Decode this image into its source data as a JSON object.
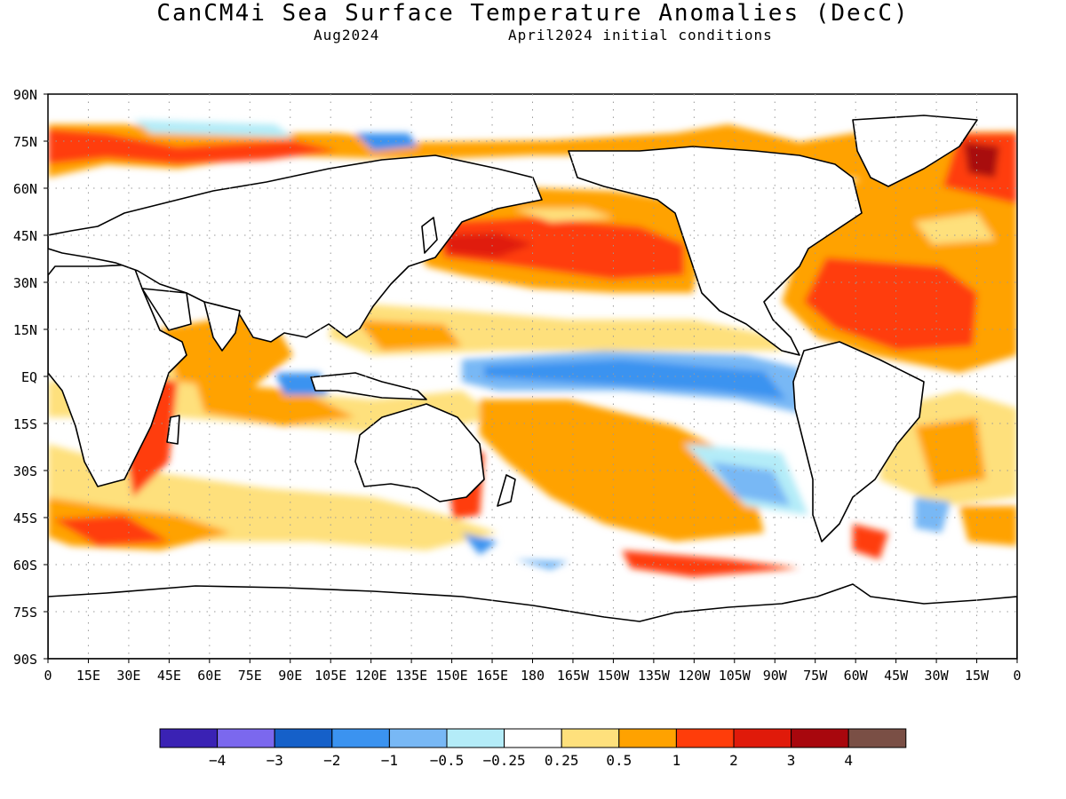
{
  "header": {
    "title": "CanCM4i Sea Surface Temperature Anomalies (DecC)",
    "month": "Aug2024",
    "init": "April2024 initial conditions"
  },
  "axes": {
    "lat_labels": [
      "90N",
      "75N",
      "60N",
      "45N",
      "30N",
      "15N",
      "EQ",
      "15S",
      "30S",
      "45S",
      "60S",
      "75S",
      "90S"
    ],
    "lon_labels": [
      "0",
      "15E",
      "30E",
      "45E",
      "60E",
      "75E",
      "90E",
      "105E",
      "120E",
      "135E",
      "150E",
      "165E",
      "180",
      "165W",
      "150W",
      "135W",
      "120W",
      "105W",
      "90W",
      "75W",
      "60W",
      "45W",
      "30W",
      "15W",
      "0"
    ]
  },
  "colorbar": {
    "colors": [
      "#3a22b4",
      "#7b68ee",
      "#1560c9",
      "#3b93f0",
      "#78b8f5",
      "#b4ecf8",
      "#ffffff",
      "#fee07c",
      "#ffa200",
      "#ff3d0a",
      "#e01a0a",
      "#a8070d",
      "#7a4f45"
    ],
    "labels": [
      "-4",
      "-3",
      "-2",
      "-1",
      "-0.5",
      "-0.25",
      "0.25",
      "0.5",
      "1",
      "2",
      "3",
      "4"
    ]
  },
  "land": {
    "color": "#ffffff"
  }
}
